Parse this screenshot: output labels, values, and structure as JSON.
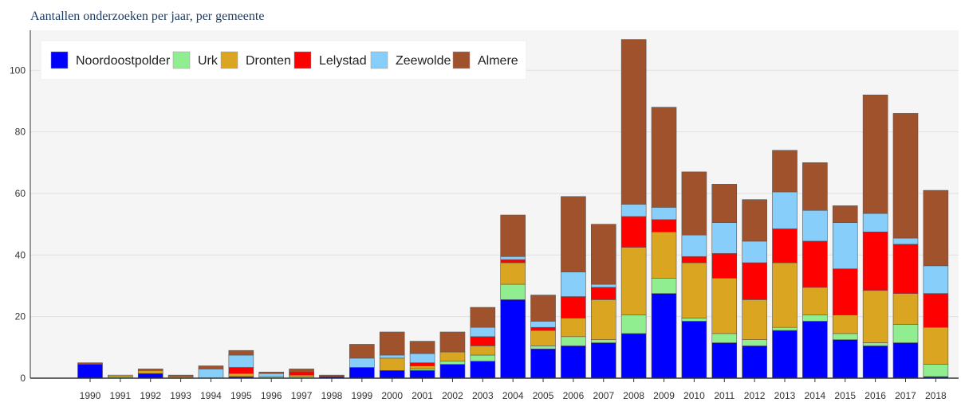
{
  "chart_data": {
    "type": "bar",
    "stacked": true,
    "title": "Aantallen onderzoeken per jaar, per gemeente",
    "xlabel": "",
    "ylabel": "",
    "ylim": [
      0,
      113
    ],
    "yticks": [
      0,
      20,
      40,
      60,
      80,
      100
    ],
    "grid": "horizontal",
    "legend_position": "top-left",
    "categories": [
      "1990",
      "1991",
      "1992",
      "1993",
      "1994",
      "1995",
      "1996",
      "1997",
      "1998",
      "1999",
      "2000",
      "2001",
      "2002",
      "2003",
      "2004",
      "2005",
      "2006",
      "2007",
      "2008",
      "2009",
      "2010",
      "2011",
      "2012",
      "2013",
      "2014",
      "2015",
      "2016",
      "2017",
      "2018"
    ],
    "series": [
      {
        "name": "Noordoostpolder",
        "color": "#0000ff",
        "values": [
          4.5,
          0,
          1.5,
          0,
          0,
          0.5,
          0,
          0,
          0.5,
          3.5,
          2.5,
          2.5,
          4.5,
          5.5,
          25.5,
          9.5,
          10.5,
          11.5,
          14.5,
          27.5,
          18.5,
          11.5,
          10.5,
          15.5,
          18.5,
          12.5,
          10.5,
          11.5,
          0.5
        ]
      },
      {
        "name": "Urk",
        "color": "#90ee90",
        "values": [
          0,
          0.5,
          0,
          0,
          0,
          0,
          0.5,
          0.5,
          0,
          0,
          0,
          0.5,
          1,
          2,
          5,
          1,
          3,
          1,
          6,
          5,
          1,
          3,
          2,
          1,
          2,
          2,
          1,
          6,
          4
        ]
      },
      {
        "name": "Dronten",
        "color": "#daa520",
        "values": [
          0,
          0.5,
          1,
          0.5,
          0,
          1,
          0,
          0.5,
          0,
          0,
          4,
          1,
          3,
          3,
          7,
          5,
          6,
          13,
          22,
          15,
          18,
          18,
          13,
          21,
          9,
          6,
          17,
          10,
          12
        ]
      },
      {
        "name": "Lelystad",
        "color": "#ff0000",
        "values": [
          0,
          0,
          0,
          0,
          0,
          2,
          0,
          1,
          0,
          0,
          0,
          1,
          0,
          3,
          1,
          1,
          7,
          4,
          10,
          4,
          2,
          8,
          12,
          11,
          15,
          15,
          19,
          16,
          11
        ]
      },
      {
        "name": "Zeewolde",
        "color": "#87cefa",
        "values": [
          0,
          0,
          0,
          0,
          3,
          4,
          1,
          0,
          0,
          3,
          1,
          3,
          0,
          3,
          1,
          2,
          8,
          1,
          4,
          4,
          7,
          10,
          7,
          12,
          10,
          15,
          6,
          2,
          9
        ]
      },
      {
        "name": "Almere",
        "color": "#a0522d",
        "values": [
          0.5,
          0,
          0.5,
          0.5,
          1,
          1.5,
          0.5,
          1,
          0.5,
          4.5,
          7.5,
          4,
          6.5,
          6.5,
          13.5,
          8.5,
          24.5,
          19.5,
          53.5,
          32.5,
          20.5,
          12.5,
          13.5,
          13.5,
          15.5,
          5.5,
          38.5,
          40.5,
          24.5
        ]
      }
    ]
  }
}
